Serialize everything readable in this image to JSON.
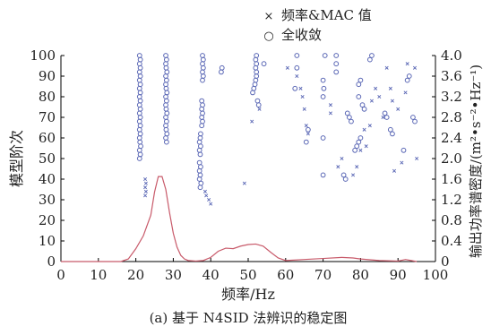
{
  "chart_data": {
    "type": "scatter",
    "caption": "(a) 基于 N4SID 法辨识的稳定图",
    "xlabel": "频率/Hz",
    "ylabel_left": "模型阶次",
    "ylabel_right": "输出功率谱密度/(m²•s⁻²•Hz⁻¹)",
    "xlim": [
      0,
      100
    ],
    "ylim_left": [
      0,
      100
    ],
    "ylim_right": [
      0,
      4.0
    ],
    "x_ticks": [
      "0",
      "10",
      "20",
      "30",
      "40",
      "50",
      "60",
      "70",
      "80",
      "90",
      "100"
    ],
    "y_left_ticks": [
      "0",
      "10",
      "20",
      "30",
      "40",
      "50",
      "60",
      "70",
      "80",
      "90",
      "100"
    ],
    "y_right_ticks": [
      "0",
      "0.4",
      "0.8",
      "1.2",
      "1.6",
      "2.0",
      "2.4",
      "2.8",
      "3.2",
      "3.6",
      "4.0"
    ],
    "legend": {
      "placement": "top-center",
      "entries": [
        {
          "name": "频率&MAC 值",
          "marker": "x",
          "glyph": "×"
        },
        {
          "name": "全收敛",
          "marker": "circle",
          "glyph": "○"
        }
      ]
    },
    "series": [
      {
        "name": "全收敛",
        "marker": "circle",
        "color": "#5a67b5",
        "points": [
          [
            21.0,
            50
          ],
          [
            21.2,
            52
          ],
          [
            21.0,
            54
          ],
          [
            21.3,
            56
          ],
          [
            21.1,
            58
          ],
          [
            21.0,
            60
          ],
          [
            21.2,
            62
          ],
          [
            21.0,
            64
          ],
          [
            21.2,
            66
          ],
          [
            21.0,
            68
          ],
          [
            21.2,
            70
          ],
          [
            21.0,
            72
          ],
          [
            21.2,
            74
          ],
          [
            21.0,
            76
          ],
          [
            21.2,
            78
          ],
          [
            21.0,
            80
          ],
          [
            21.2,
            82
          ],
          [
            21.0,
            84
          ],
          [
            21.2,
            86
          ],
          [
            21.0,
            88
          ],
          [
            21.2,
            90
          ],
          [
            21.0,
            92
          ],
          [
            21.2,
            94
          ],
          [
            21.0,
            96
          ],
          [
            21.2,
            98
          ],
          [
            21.0,
            100
          ],
          [
            28.2,
            58
          ],
          [
            28.0,
            60
          ],
          [
            28.3,
            62
          ],
          [
            28.1,
            64
          ],
          [
            28.0,
            66
          ],
          [
            28.2,
            68
          ],
          [
            28.0,
            70
          ],
          [
            28.3,
            72
          ],
          [
            28.1,
            74
          ],
          [
            28.0,
            76
          ],
          [
            28.2,
            78
          ],
          [
            28.0,
            80
          ],
          [
            28.3,
            82
          ],
          [
            28.1,
            84
          ],
          [
            28.0,
            86
          ],
          [
            28.2,
            88
          ],
          [
            28.0,
            90
          ],
          [
            28.3,
            92
          ],
          [
            28.1,
            94
          ],
          [
            28.0,
            96
          ],
          [
            28.2,
            98
          ],
          [
            28.0,
            100
          ],
          [
            37.2,
            36
          ],
          [
            37.4,
            38
          ],
          [
            37.0,
            40
          ],
          [
            37.2,
            42
          ],
          [
            37.0,
            44
          ],
          [
            37.3,
            46
          ],
          [
            37.0,
            48
          ],
          [
            37.2,
            52
          ],
          [
            37.0,
            54
          ],
          [
            37.3,
            56
          ],
          [
            37.0,
            58
          ],
          [
            37.2,
            60
          ],
          [
            37.3,
            62
          ],
          [
            37.6,
            66
          ],
          [
            37.8,
            68
          ],
          [
            37.6,
            70
          ],
          [
            37.8,
            72
          ],
          [
            37.6,
            74
          ],
          [
            37.8,
            76
          ],
          [
            37.6,
            78
          ],
          [
            37.8,
            88
          ],
          [
            38.0,
            90
          ],
          [
            37.8,
            92
          ],
          [
            38.0,
            94
          ],
          [
            37.8,
            96
          ],
          [
            38.0,
            98
          ],
          [
            37.8,
            100
          ],
          [
            42.8,
            92
          ],
          [
            43.0,
            94
          ],
          [
            51.2,
            82
          ],
          [
            51.5,
            84
          ],
          [
            51.8,
            86
          ],
          [
            52.0,
            88
          ],
          [
            52.2,
            90
          ],
          [
            52.2,
            92
          ],
          [
            52.0,
            94
          ],
          [
            52.2,
            96
          ],
          [
            52.0,
            98
          ],
          [
            52.2,
            100
          ],
          [
            52.5,
            78
          ],
          [
            52.8,
            76
          ],
          [
            54.2,
            96
          ],
          [
            63.0,
            100
          ],
          [
            63.0,
            94
          ],
          [
            62.5,
            84
          ],
          [
            65.5,
            58
          ],
          [
            66.0,
            64
          ],
          [
            70.0,
            42
          ],
          [
            70.0,
            60
          ],
          [
            70.0,
            80
          ],
          [
            70.2,
            84
          ],
          [
            70.0,
            88
          ],
          [
            70.5,
            100
          ],
          [
            73.5,
            92
          ],
          [
            73.5,
            96
          ],
          [
            73.5,
            100
          ],
          [
            75.5,
            42
          ],
          [
            76.0,
            40
          ],
          [
            76.5,
            72
          ],
          [
            77.0,
            70
          ],
          [
            77.5,
            68
          ],
          [
            78.5,
            54
          ],
          [
            79.0,
            56
          ],
          [
            79.5,
            58
          ],
          [
            80.0,
            60
          ],
          [
            79.5,
            80
          ],
          [
            79.5,
            86
          ],
          [
            80.0,
            88
          ],
          [
            80.5,
            76
          ],
          [
            81.0,
            74
          ],
          [
            82.5,
            98
          ],
          [
            83.0,
            100
          ],
          [
            86.5,
            72
          ],
          [
            87.0,
            70
          ],
          [
            88.0,
            64
          ],
          [
            88.5,
            62
          ],
          [
            91.5,
            54
          ],
          [
            92.5,
            88
          ],
          [
            93.0,
            90
          ],
          [
            94.0,
            70
          ],
          [
            94.5,
            68
          ]
        ]
      },
      {
        "name": "频率&MAC 值",
        "marker": "x",
        "color": "#5a67b5",
        "points": [
          [
            22.5,
            40
          ],
          [
            22.7,
            38
          ],
          [
            22.5,
            36
          ],
          [
            22.7,
            34
          ],
          [
            22.5,
            32
          ],
          [
            38.5,
            34
          ],
          [
            38.8,
            32
          ],
          [
            39.5,
            30
          ],
          [
            40.0,
            28
          ],
          [
            49.0,
            38
          ],
          [
            51.0,
            68
          ],
          [
            53.0,
            74
          ],
          [
            60.5,
            94
          ],
          [
            63.0,
            90
          ],
          [
            64.0,
            84
          ],
          [
            64.5,
            80
          ],
          [
            65.0,
            74
          ],
          [
            65.5,
            66
          ],
          [
            66.0,
            62
          ],
          [
            72.0,
            72
          ],
          [
            72.0,
            76
          ],
          [
            74.0,
            46
          ],
          [
            75.0,
            50
          ],
          [
            78.0,
            42
          ],
          [
            79.0,
            46
          ],
          [
            80.0,
            54
          ],
          [
            81.0,
            64
          ],
          [
            81.5,
            56
          ],
          [
            82.5,
            66
          ],
          [
            83.0,
            78
          ],
          [
            84.0,
            84
          ],
          [
            85.0,
            80
          ],
          [
            86.0,
            70
          ],
          [
            87.0,
            94
          ],
          [
            88.0,
            84
          ],
          [
            88.5,
            78
          ],
          [
            89.0,
            44
          ],
          [
            90.0,
            74
          ],
          [
            91.0,
            48
          ],
          [
            92.0,
            82
          ],
          [
            92.5,
            96
          ],
          [
            94.5,
            94
          ],
          [
            95.0,
            50
          ]
        ]
      },
      {
        "name": "输出功率谱密度",
        "type": "line",
        "axis": "right",
        "color": "#c85a6a",
        "x": [
          0,
          16,
          18,
          20,
          22,
          24,
          25,
          26,
          27,
          28,
          29,
          30,
          31,
          32,
          33,
          34,
          36,
          38,
          40,
          42,
          44,
          46,
          48,
          50,
          52,
          54,
          56,
          58,
          60,
          65,
          70,
          75,
          78,
          80,
          85,
          90,
          92,
          95
        ],
        "y": [
          0,
          0.0,
          0.05,
          0.25,
          0.5,
          0.9,
          1.35,
          1.65,
          1.65,
          1.4,
          0.95,
          0.55,
          0.28,
          0.12,
          0.05,
          0.02,
          0.01,
          0.02,
          0.08,
          0.2,
          0.26,
          0.25,
          0.3,
          0.33,
          0.34,
          0.3,
          0.18,
          0.07,
          0.02,
          0.04,
          0.06,
          0.08,
          0.07,
          0.05,
          0.02,
          0.01,
          0.04,
          0.0
        ]
      }
    ]
  }
}
